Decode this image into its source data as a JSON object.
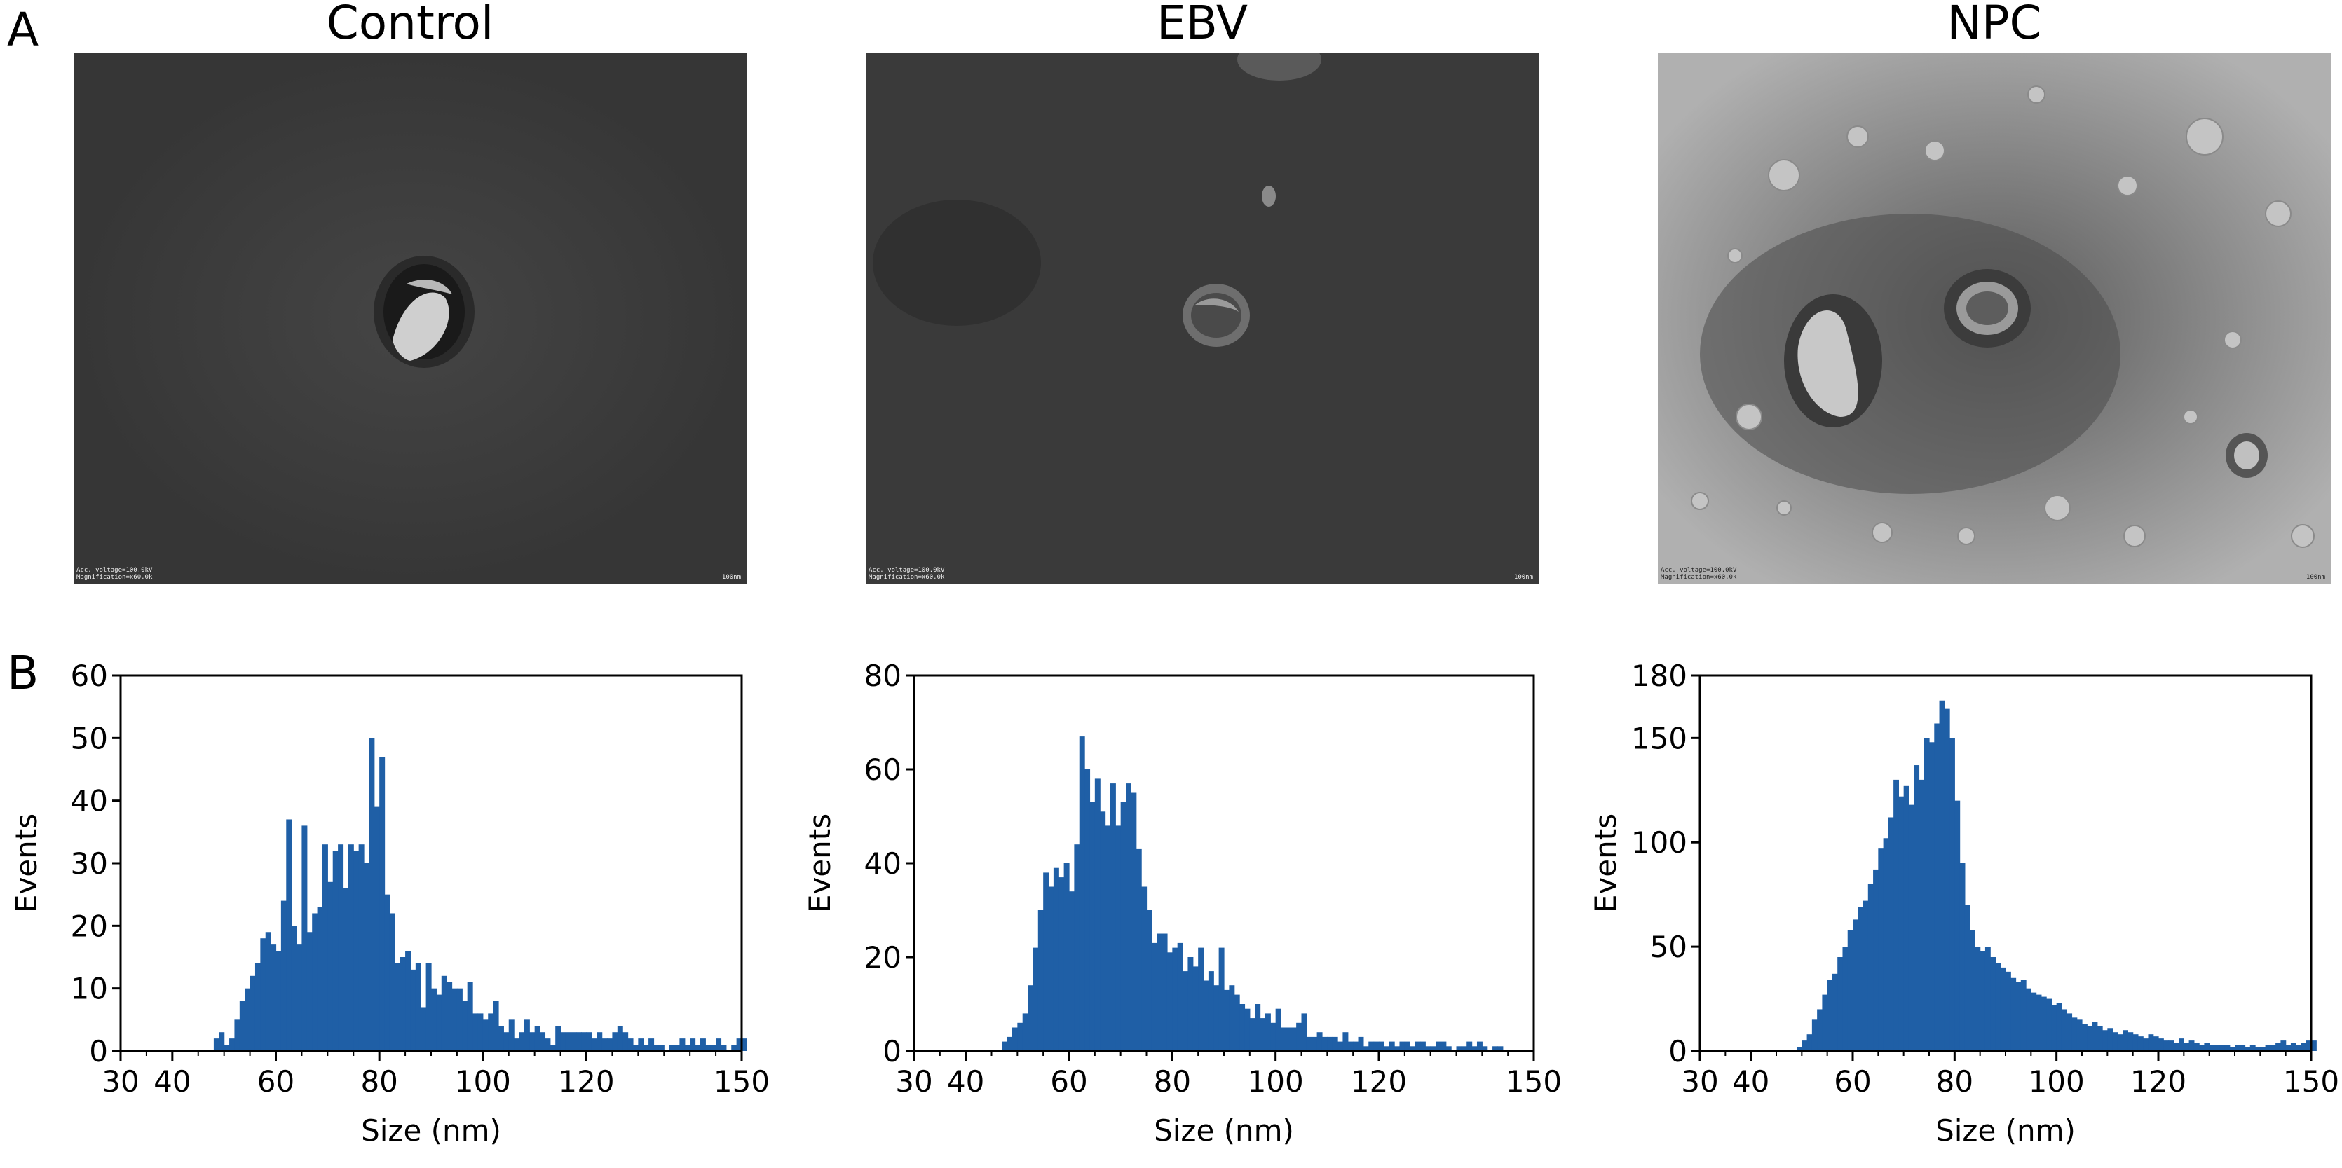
{
  "panels": {
    "a": "A",
    "b": "B"
  },
  "tem_images": [
    {
      "title": "Control",
      "caption_line1": "Acc. voltage=100.0kV",
      "caption_line2": "Magnification=x60.0k",
      "scale_bar": "100nm",
      "tone": "dark"
    },
    {
      "title": "EBV",
      "caption_line1": "Acc. voltage=100.0kV",
      "caption_line2": "Magnification=x60.0k",
      "scale_bar": "100nm",
      "tone": "dark"
    },
    {
      "title": "NPC",
      "caption_line1": "Acc. voltage=100.0kV",
      "caption_line2": "Magnification=x60.0k",
      "scale_bar": "100nm",
      "tone": "light"
    }
  ],
  "colors": {
    "bar": "#1f5fa6",
    "axis": "#000000"
  },
  "chart_data": [
    {
      "type": "bar",
      "xlabel": "Size (nm)",
      "ylabel": "Events",
      "xlim": [
        30,
        150
      ],
      "ylim": [
        0,
        60
      ],
      "xticks": [
        30,
        40,
        60,
        80,
        100,
        120,
        150
      ],
      "yticks": [
        0,
        10,
        20,
        30,
        40,
        50,
        60
      ],
      "x_start": 30,
      "bin_width": 1,
      "values": [
        0,
        0,
        0,
        0,
        0,
        0,
        0,
        0,
        0,
        0,
        0,
        0,
        0,
        0,
        0,
        0,
        0,
        0,
        2,
        3,
        1,
        2,
        5,
        8,
        10,
        12,
        14,
        18,
        19,
        17,
        16,
        24,
        37,
        20,
        17,
        36,
        19,
        22,
        23,
        33,
        27,
        32,
        33,
        26,
        33,
        32,
        33,
        30,
        50,
        39,
        47,
        25,
        22,
        14,
        15,
        16,
        13,
        14,
        7,
        14,
        10,
        9,
        12,
        11,
        10,
        10,
        8,
        11,
        6,
        6,
        5,
        6,
        8,
        4,
        3,
        5,
        2,
        3,
        5,
        3,
        4,
        3,
        2,
        1,
        4,
        3,
        3,
        3,
        3,
        3,
        3,
        2,
        3,
        2,
        2,
        3,
        4,
        3,
        2,
        1,
        2,
        1,
        2,
        1,
        1,
        0,
        1,
        1,
        2,
        1,
        2,
        1,
        2,
        1,
        1,
        2,
        1,
        0,
        1,
        2,
        2
      ]
    },
    {
      "type": "bar",
      "xlabel": "Size (nm)",
      "ylabel": "Events",
      "xlim": [
        30,
        150
      ],
      "ylim": [
        0,
        80
      ],
      "xticks": [
        30,
        40,
        60,
        80,
        100,
        120,
        150
      ],
      "yticks": [
        0,
        20,
        40,
        60,
        80
      ],
      "x_start": 30,
      "bin_width": 1,
      "values": [
        0,
        0,
        0,
        0,
        0,
        0,
        0,
        0,
        0,
        0,
        0,
        0,
        0,
        0,
        0,
        0,
        0,
        2,
        3,
        5,
        6,
        8,
        14,
        22,
        30,
        38,
        35,
        39,
        37,
        40,
        34,
        44,
        67,
        60,
        53,
        58,
        51,
        48,
        57,
        48,
        53,
        57,
        55,
        43,
        35,
        30,
        23,
        25,
        25,
        21,
        22,
        23,
        17,
        20,
        18,
        22,
        15,
        17,
        14,
        22,
        13,
        14,
        12,
        10,
        9,
        7,
        10,
        7,
        8,
        6,
        9,
        5,
        5,
        5,
        6,
        8,
        3,
        3,
        4,
        3,
        3,
        3,
        2,
        4,
        2,
        2,
        3,
        1,
        2,
        2,
        2,
        1,
        2,
        1,
        2,
        2,
        1,
        2,
        2,
        1,
        1,
        2,
        2,
        1,
        0,
        1,
        1,
        2,
        1,
        2,
        1,
        0,
        1,
        1,
        0,
        0,
        0,
        0,
        0,
        0,
        0
      ]
    },
    {
      "type": "bar",
      "xlabel": "Size (nm)",
      "ylabel": "Events",
      "xlim": [
        30,
        150
      ],
      "ylim": [
        0,
        180
      ],
      "xticks": [
        30,
        40,
        60,
        80,
        100,
        120,
        150
      ],
      "yticks": [
        0,
        50,
        100,
        150,
        180
      ],
      "x_start": 30,
      "bin_width": 1,
      "values": [
        0,
        0,
        0,
        0,
        0,
        0,
        0,
        0,
        0,
        0,
        0,
        0,
        0,
        0,
        0,
        0,
        0,
        0,
        0,
        2,
        5,
        8,
        15,
        20,
        27,
        34,
        37,
        45,
        50,
        58,
        63,
        69,
        72,
        80,
        87,
        97,
        102,
        112,
        130,
        122,
        127,
        118,
        137,
        130,
        150,
        148,
        157,
        168,
        164,
        150,
        120,
        90,
        70,
        58,
        50,
        48,
        50,
        45,
        42,
        40,
        38,
        35,
        33,
        34,
        30,
        28,
        27,
        26,
        25,
        22,
        23,
        20,
        18,
        16,
        15,
        13,
        12,
        14,
        12,
        10,
        11,
        9,
        8,
        10,
        9,
        8,
        7,
        6,
        8,
        7,
        6,
        5,
        5,
        4,
        6,
        4,
        5,
        4,
        3,
        4,
        3,
        3,
        3,
        3,
        2,
        3,
        3,
        2,
        3,
        2,
        2,
        3,
        3,
        4,
        5,
        3,
        4,
        3,
        4,
        5,
        5
      ]
    }
  ]
}
